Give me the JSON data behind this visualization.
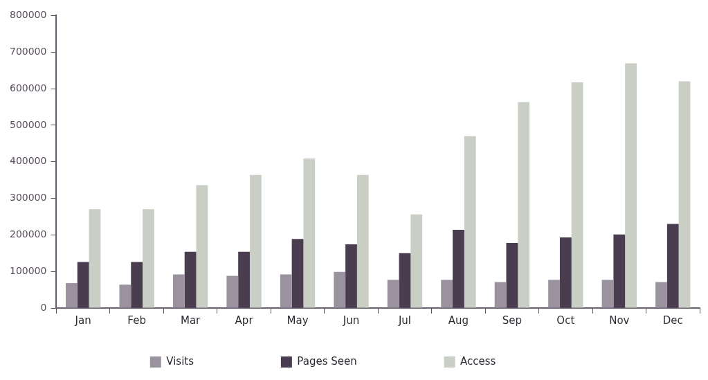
{
  "chart_data": {
    "type": "bar",
    "categories": [
      "Jan",
      "Feb",
      "Mar",
      "Apr",
      "May",
      "Jun",
      "Jul",
      "Aug",
      "Sep",
      "Oct",
      "Nov",
      "Dec"
    ],
    "series": [
      {
        "name": "Visits",
        "color": "#9b929f",
        "values": [
          68000,
          64000,
          92000,
          88000,
          92000,
          99000,
          77000,
          77000,
          71000,
          77000,
          77000,
          71000
        ]
      },
      {
        "name": "Pages Seen",
        "color": "#4a3d50",
        "values": [
          126000,
          126000,
          154000,
          154000,
          189000,
          174000,
          150000,
          214000,
          178000,
          193000,
          201000,
          230000
        ]
      },
      {
        "name": "Access",
        "color": "#c9cfc4",
        "values": [
          270000,
          270000,
          336000,
          364000,
          409000,
          364000,
          256000,
          470000,
          563000,
          617000,
          669000,
          620000
        ]
      }
    ],
    "ylim": [
      0,
      800000
    ],
    "yticks": [
      0,
      100000,
      200000,
      300000,
      400000,
      500000,
      600000,
      700000,
      800000
    ],
    "grid": false,
    "legend": "bottom"
  }
}
